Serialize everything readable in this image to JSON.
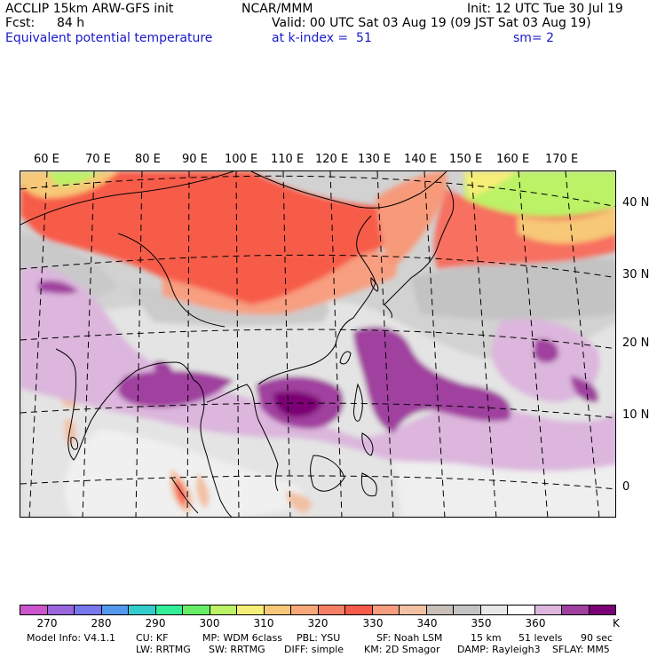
{
  "header": {
    "model": "ACCLIP 15km ARW-GFS init",
    "org": "NCAR/MMM",
    "init": "Init: 12 UTC Tue 30 Jul 19",
    "fcst_label": "Fcst:",
    "fcst_value": "84 h",
    "valid": "Valid: 00 UTC Sat 03 Aug 19 (09 JST Sat 03 Aug 19)",
    "field": "Equivalent potential temperature",
    "level": "at k-index =  51",
    "smoothing": "sm= 2"
  },
  "map": {
    "lon_labels": [
      "60 E",
      "70 E",
      "80 E",
      "90 E",
      "100 E",
      "110 E",
      "120 E",
      "130 E",
      "140 E",
      "150 E",
      "160 E",
      "170 E"
    ],
    "lat_labels": [
      "40 N",
      "30 N",
      "20 N",
      "10 N",
      "0"
    ]
  },
  "colorbar": {
    "unit": "K",
    "labels": [
      "270",
      "280",
      "290",
      "300",
      "310",
      "320",
      "330",
      "340",
      "350",
      "360"
    ],
    "colors": [
      "#cc55cc",
      "#9966dd",
      "#7777ee",
      "#5599ee",
      "#33cccc",
      "#33ee99",
      "#66ee66",
      "#bbf266",
      "#f5ee77",
      "#f7c877",
      "#f8a878",
      "#f77f65",
      "#f75b4a",
      "#f89c80",
      "#f2c0a2",
      "#c9bfb9",
      "#c3c3c3",
      "#e8e8e8",
      "#ffffff",
      "#dcb6dd",
      "#a0409f",
      "#7b0075"
    ]
  },
  "footer": {
    "line1": [
      "Model Info: V4.1.1",
      "CU: KF",
      "MP: WDM 6class",
      "PBL: YSU",
      "SF: Noah LSM",
      "15 km",
      "51 levels",
      "90 sec"
    ],
    "line2": [
      "LW: RRTMG",
      "SW: RRTMG",
      "DIFF: simple",
      "KM: 2D Smagor",
      "DAMP: Rayleigh3",
      "SFLAY: MM5"
    ]
  }
}
